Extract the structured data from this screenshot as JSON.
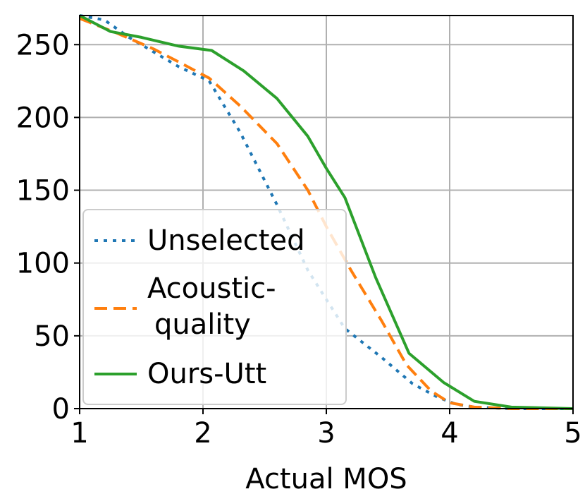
{
  "chart_data": {
    "type": "line",
    "title": "",
    "xlabel": "Actual MOS",
    "ylabel": "",
    "xlim": [
      1,
      5
    ],
    "ylim": [
      0,
      270
    ],
    "xticks": [
      1,
      2,
      3,
      4,
      5
    ],
    "yticks": [
      0,
      50,
      100,
      150,
      200,
      250
    ],
    "grid": true,
    "legend_position": "center-left",
    "series": [
      {
        "name": "Unselected",
        "legend_lines": [
          "Unselected"
        ],
        "color": "#1f77b4",
        "style": "dotted",
        "x": [
          1.0,
          1.2,
          1.4,
          1.6,
          1.8,
          2.05,
          2.3,
          2.6,
          2.85,
          3.0,
          3.15,
          3.45,
          3.7,
          3.9,
          4.05,
          4.2,
          4.5,
          5.0
        ],
        "y": [
          270,
          267,
          255,
          245,
          235,
          225,
          190,
          140,
          95,
          75,
          55,
          35,
          17,
          8,
          3,
          1,
          0,
          0
        ]
      },
      {
        "name": "Acoustic-quality",
        "legend_lines": [
          "Acoustic-",
          "quality"
        ],
        "color": "#ff7f0e",
        "style": "dashed",
        "x": [
          1.0,
          1.3,
          1.6,
          1.85,
          2.05,
          2.3,
          2.6,
          2.85,
          3.0,
          3.2,
          3.45,
          3.65,
          3.85,
          4.0,
          4.2,
          4.5,
          5.0
        ],
        "y": [
          268,
          258,
          247,
          236,
          227,
          208,
          182,
          150,
          125,
          95,
          60,
          30,
          12,
          4,
          1,
          0,
          0
        ]
      },
      {
        "name": "Ours-Utt",
        "legend_lines": [
          "Ours-Utt"
        ],
        "color": "#2ca02c",
        "style": "solid",
        "x": [
          1.0,
          1.25,
          1.5,
          1.8,
          2.07,
          2.33,
          2.6,
          2.85,
          3.0,
          3.15,
          3.4,
          3.67,
          3.95,
          4.2,
          4.5,
          5.0
        ],
        "y": [
          270,
          259,
          255,
          249,
          246,
          232,
          213,
          187,
          165,
          145,
          90,
          38,
          18,
          5,
          1,
          0
        ]
      }
    ]
  }
}
